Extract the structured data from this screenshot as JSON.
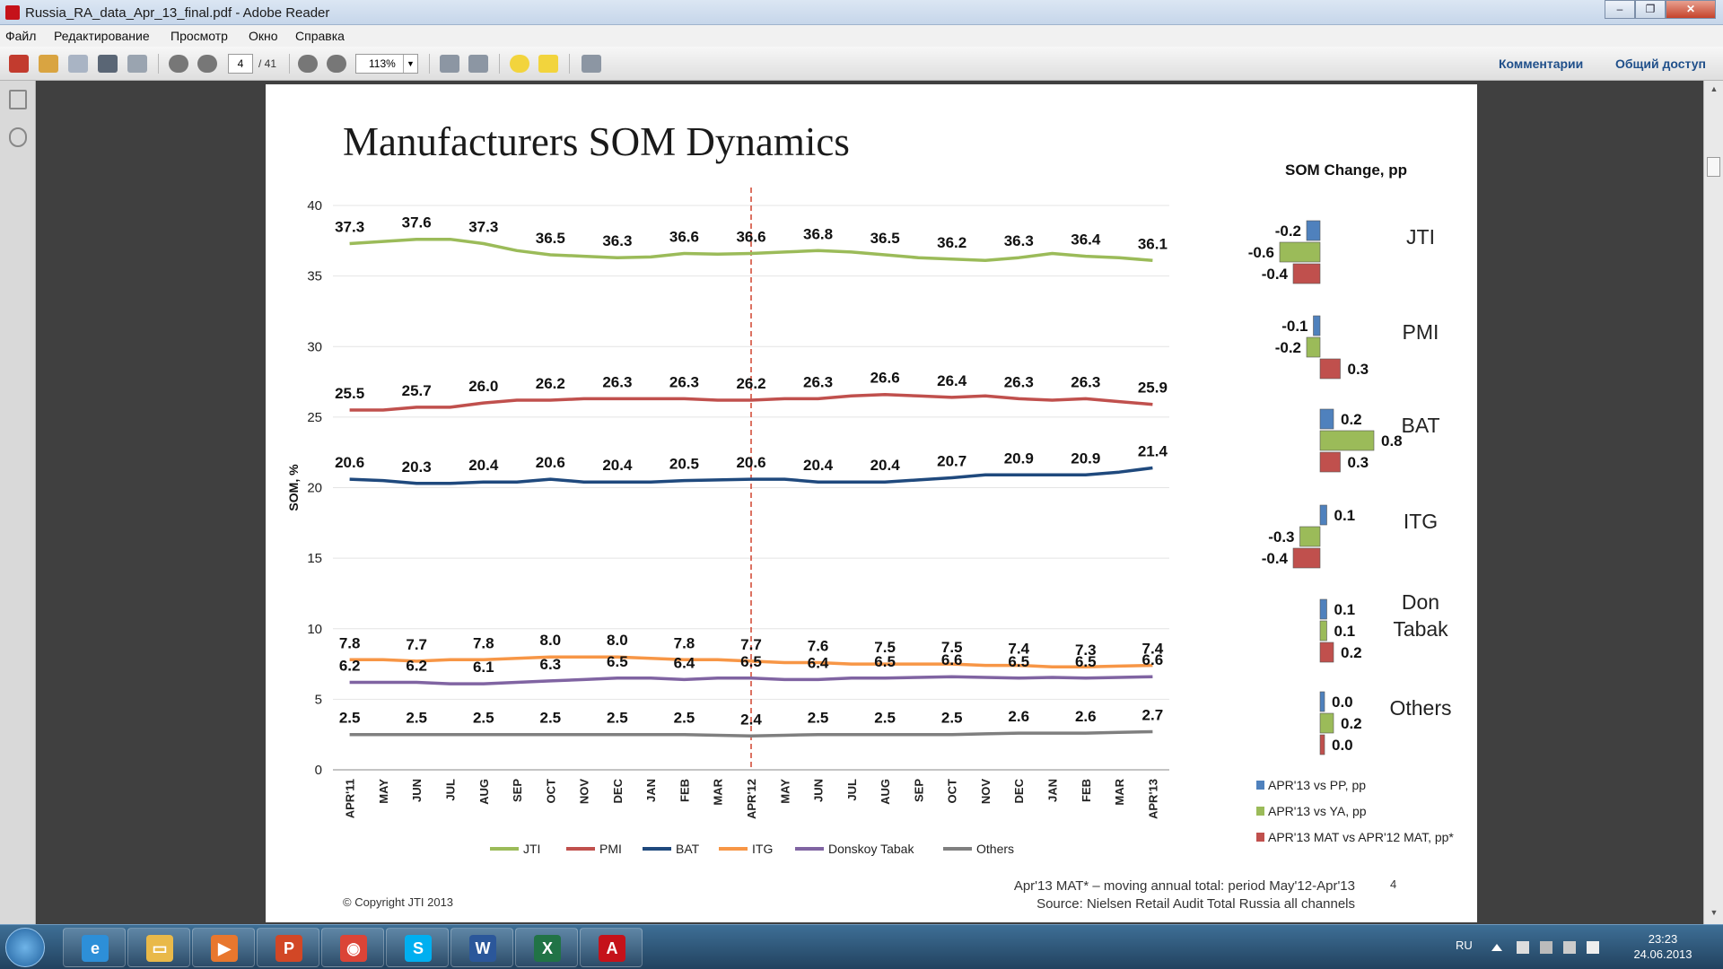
{
  "window": {
    "title": "Russia_RA_data_Apr_13_final.pdf - Adobe Reader"
  },
  "menu": [
    "Файл",
    "Редактирование",
    "Просмотр",
    "Окно",
    "Справка"
  ],
  "toolbar": {
    "page_current": "4",
    "page_total": "/ 41",
    "zoom": "113%",
    "comments_label": "Комментарии",
    "share_label": "Общий доступ"
  },
  "slide": {
    "title": "Manufacturers SOM Dynamics",
    "som_change_title": "SOM Change, pp",
    "footnote_line1": "Apr'13 MAT* – moving annual total: period May'12-Apr'13",
    "footnote_line2": "Source: Nielsen Retail Audit Total Russia all channels",
    "copyright": "© Copyright JTI 2013",
    "page_number": "4"
  },
  "chart_data": [
    {
      "type": "line",
      "ylabel": "SOM, %",
      "ylim": [
        0,
        40
      ],
      "yticks": [
        0,
        5,
        10,
        15,
        20,
        25,
        30,
        35,
        40
      ],
      "categories": [
        "APR'11",
        "MAY",
        "JUN",
        "JUL",
        "AUG",
        "SEP",
        "OCT",
        "NOV",
        "DEC",
        "JAN",
        "FEB",
        "MAR",
        "APR'12",
        "MAY",
        "JUN",
        "JUL",
        "AUG",
        "SEP",
        "OCT",
        "NOV",
        "DEC",
        "JAN",
        "FEB",
        "MAR",
        "APR'13"
      ],
      "reference_line_at": "APR'12",
      "label_every": 2,
      "series": [
        {
          "name": "JTI",
          "color": "#9bbb59",
          "values": [
            37.3,
            37.45,
            37.6,
            37.6,
            37.3,
            36.8,
            36.5,
            36.4,
            36.3,
            36.35,
            36.6,
            36.55,
            36.6,
            36.7,
            36.8,
            36.7,
            36.5,
            36.3,
            36.2,
            36.1,
            36.3,
            36.6,
            36.4,
            36.3,
            36.1
          ]
        },
        {
          "name": "PMI",
          "color": "#c0504d",
          "values": [
            25.5,
            25.5,
            25.7,
            25.7,
            26.0,
            26.2,
            26.2,
            26.3,
            26.3,
            26.3,
            26.3,
            26.2,
            26.2,
            26.3,
            26.3,
            26.5,
            26.6,
            26.5,
            26.4,
            26.5,
            26.3,
            26.2,
            26.3,
            26.1,
            25.9
          ]
        },
        {
          "name": "BAT",
          "color": "#1f497d",
          "values": [
            20.6,
            20.5,
            20.3,
            20.3,
            20.4,
            20.4,
            20.6,
            20.4,
            20.4,
            20.4,
            20.5,
            20.55,
            20.6,
            20.6,
            20.4,
            20.4,
            20.4,
            20.55,
            20.7,
            20.9,
            20.9,
            20.9,
            20.9,
            21.1,
            21.4
          ]
        },
        {
          "name": "ITG",
          "color": "#f79646",
          "values": [
            7.8,
            7.8,
            7.7,
            7.8,
            7.8,
            7.9,
            8.0,
            8.0,
            8.0,
            7.9,
            7.8,
            7.8,
            7.7,
            7.6,
            7.6,
            7.5,
            7.5,
            7.5,
            7.5,
            7.4,
            7.4,
            7.3,
            7.3,
            7.35,
            7.4
          ]
        },
        {
          "name": "Donskoy Tabak",
          "color": "#8064a2",
          "values": [
            6.2,
            6.2,
            6.2,
            6.1,
            6.1,
            6.2,
            6.3,
            6.4,
            6.5,
            6.5,
            6.4,
            6.5,
            6.5,
            6.4,
            6.4,
            6.5,
            6.5,
            6.55,
            6.6,
            6.55,
            6.5,
            6.55,
            6.5,
            6.55,
            6.6
          ]
        },
        {
          "name": "Others",
          "color": "#7f7f7f",
          "values": [
            2.5,
            2.5,
            2.5,
            2.5,
            2.5,
            2.5,
            2.5,
            2.5,
            2.5,
            2.5,
            2.5,
            2.45,
            2.4,
            2.45,
            2.5,
            2.5,
            2.5,
            2.5,
            2.5,
            2.55,
            2.6,
            2.6,
            2.6,
            2.65,
            2.7
          ]
        }
      ],
      "data_labels": {
        "JTI": [
          "37.3",
          "37.6",
          "37.3",
          "36.5",
          "36.3",
          "36.6",
          "36.6",
          "36.8",
          "36.5",
          "36.2",
          "36.3",
          "36.4",
          "36.1"
        ],
        "PMI": [
          "25.5",
          "25.7",
          "26.0",
          "26.2",
          "26.3",
          "26.3",
          "26.2",
          "26.3",
          "26.6",
          "26.4",
          "26.3",
          "26.3",
          "25.9"
        ],
        "BAT": [
          "20.6",
          "20.3",
          "20.4",
          "20.6",
          "20.4",
          "20.5",
          "20.6",
          "20.4",
          "20.4",
          "20.7",
          "20.9",
          "20.9",
          "21.4"
        ],
        "ITG": [
          "7.8",
          "7.7",
          "7.8",
          "8.0",
          "8.0",
          "7.8",
          "7.7",
          "7.6",
          "7.5",
          "7.5",
          "7.4",
          "7.3",
          "7.4"
        ],
        "Donskoy Tabak": [
          "6.2",
          "6.2",
          "6.1",
          "6.3",
          "6.5",
          "6.4",
          "6.5",
          "6.4",
          "6.5",
          "6.6",
          "6.5",
          "6.5",
          "6.6"
        ],
        "Others": [
          "2.5",
          "2.5",
          "2.5",
          "2.5",
          "2.5",
          "2.5",
          "2.4",
          "2.5",
          "2.5",
          "2.5",
          "2.6",
          "2.6",
          "2.7"
        ]
      }
    },
    {
      "type": "bar",
      "title": "SOM Change, pp",
      "orientation": "horizontal",
      "series_names": [
        "APR'13 vs PP, pp",
        "APR'13 vs YA, pp",
        "APR'13 MAT vs APR'12 MAT, pp*"
      ],
      "series_colors": [
        "#4f81bd",
        "#9bbb59",
        "#c0504d"
      ],
      "groups": [
        {
          "name": "JTI",
          "values": [
            -0.2,
            -0.6,
            -0.4
          ],
          "labels": [
            "-0.2",
            "-0.6",
            "-0.4"
          ]
        },
        {
          "name": "PMI",
          "values": [
            -0.1,
            -0.2,
            0.3
          ],
          "labels": [
            "-0.1",
            "-0.2",
            "0.3"
          ]
        },
        {
          "name": "BAT",
          "values": [
            0.2,
            0.8,
            0.3
          ],
          "labels": [
            "0.2",
            "0.8",
            "0.3"
          ]
        },
        {
          "name": "ITG",
          "values": [
            0.1,
            -0.3,
            -0.4
          ],
          "labels": [
            "0.1",
            "-0.3",
            "-0.4"
          ]
        },
        {
          "name": "Don Tabak",
          "values": [
            0.1,
            0.1,
            0.2
          ],
          "labels": [
            "0.1",
            "0.1",
            "0.2"
          ]
        },
        {
          "name": "Others",
          "values": [
            0.0,
            0.2,
            0.0
          ],
          "labels": [
            "0.0",
            "0.2",
            "0.0"
          ]
        }
      ]
    }
  ],
  "taskbar": {
    "language": "RU",
    "time": "23:23",
    "date": "24.06.2013",
    "apps": [
      {
        "name": "internet-explorer",
        "glyph": "e",
        "color": "#2d8fd8"
      },
      {
        "name": "windows-explorer",
        "glyph": "▭",
        "color": "#e9b949"
      },
      {
        "name": "media-player",
        "glyph": "▶",
        "color": "#e8772e"
      },
      {
        "name": "powerpoint",
        "glyph": "P",
        "color": "#d24726"
      },
      {
        "name": "chrome",
        "glyph": "◉",
        "color": "#db4437"
      },
      {
        "name": "skype",
        "glyph": "S",
        "color": "#00aff0"
      },
      {
        "name": "word",
        "glyph": "W",
        "color": "#2b579a"
      },
      {
        "name": "excel",
        "glyph": "X",
        "color": "#217346"
      },
      {
        "name": "adobe-reader",
        "glyph": "A",
        "color": "#c5121a"
      }
    ]
  }
}
